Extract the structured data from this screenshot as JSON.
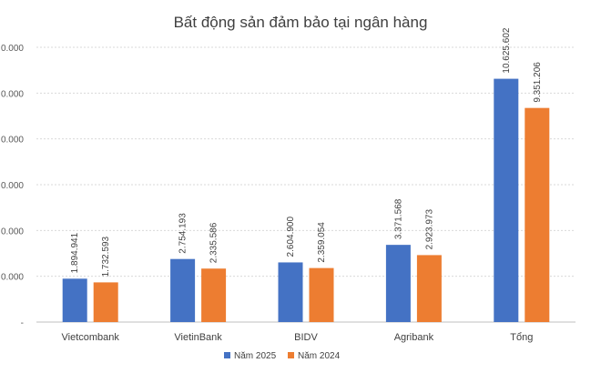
{
  "chart_data": {
    "type": "bar",
    "title": "Bất động sản đảm bảo tại ngân hàng",
    "categories": [
      "Vietcombank",
      "VietinBank",
      "BIDV",
      "Agribank",
      "Tổng"
    ],
    "series": [
      {
        "name": "Năm 2025",
        "color": "#4472C4",
        "values": [
          1894941,
          2754193,
          2604900,
          3371568,
          10625602
        ],
        "labels": [
          "1.894.941",
          "2.754.193",
          "2.604.900",
          "3.371.568",
          "10.625.602"
        ]
      },
      {
        "name": "Năm 2024",
        "color": "#ED7D31",
        "values": [
          1732593,
          2335586,
          2359054,
          2923973,
          9351206
        ],
        "labels": [
          "1.732.593",
          "2.335.586",
          "2.359.054",
          "2.923.973",
          "9.351.206"
        ]
      }
    ],
    "ylim": [
      0,
      12000000
    ],
    "yticks": [
      0,
      2000000,
      4000000,
      6000000,
      8000000,
      10000000,
      12000000
    ],
    "ytick_labels": [
      "-",
      "0.000",
      "0.000",
      "0.000",
      "0.000",
      "0.000",
      "0.000"
    ],
    "xlabel": "",
    "ylabel": "",
    "grid": true,
    "legend_position": "bottom"
  }
}
